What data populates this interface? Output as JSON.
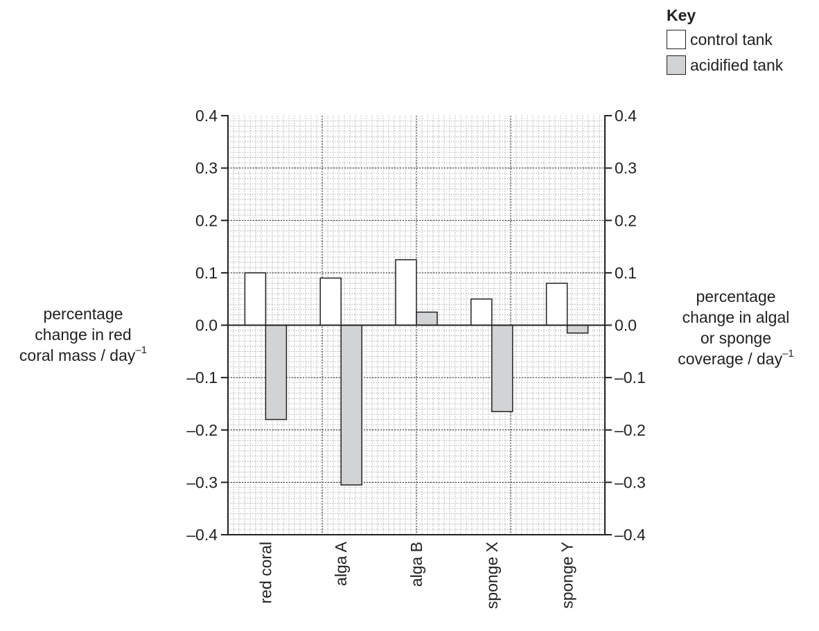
{
  "chart_data": {
    "type": "bar",
    "categories": [
      "red coral",
      "alga A",
      "alga B",
      "sponge X",
      "sponge Y"
    ],
    "series": [
      {
        "name": "control tank",
        "values": [
          0.1,
          0.09,
          0.125,
          0.05,
          0.08
        ],
        "color": "#ffffff"
      },
      {
        "name": "acidified tank",
        "values": [
          -0.18,
          -0.305,
          0.025,
          -0.165,
          -0.015
        ],
        "color": "#d1d3d4"
      }
    ],
    "ylim": [
      -0.4,
      0.4
    ],
    "yticks": [
      "0.4",
      "0.3",
      "0.2",
      "0.1",
      "0.0",
      "–0.1",
      "–0.2",
      "–0.3",
      "–0.4"
    ],
    "ylabel_left": {
      "lines": [
        "percentage",
        "change in red"
      ],
      "last_line": "coral mass / day",
      "superscript": "–1"
    },
    "ylabel_right": {
      "lines": [
        "percentage",
        "change in algal",
        "or sponge"
      ],
      "last_line": "coverage / day",
      "superscript": "–1"
    },
    "grid": true,
    "legend": {
      "title": "Key",
      "position": "top-right"
    }
  }
}
